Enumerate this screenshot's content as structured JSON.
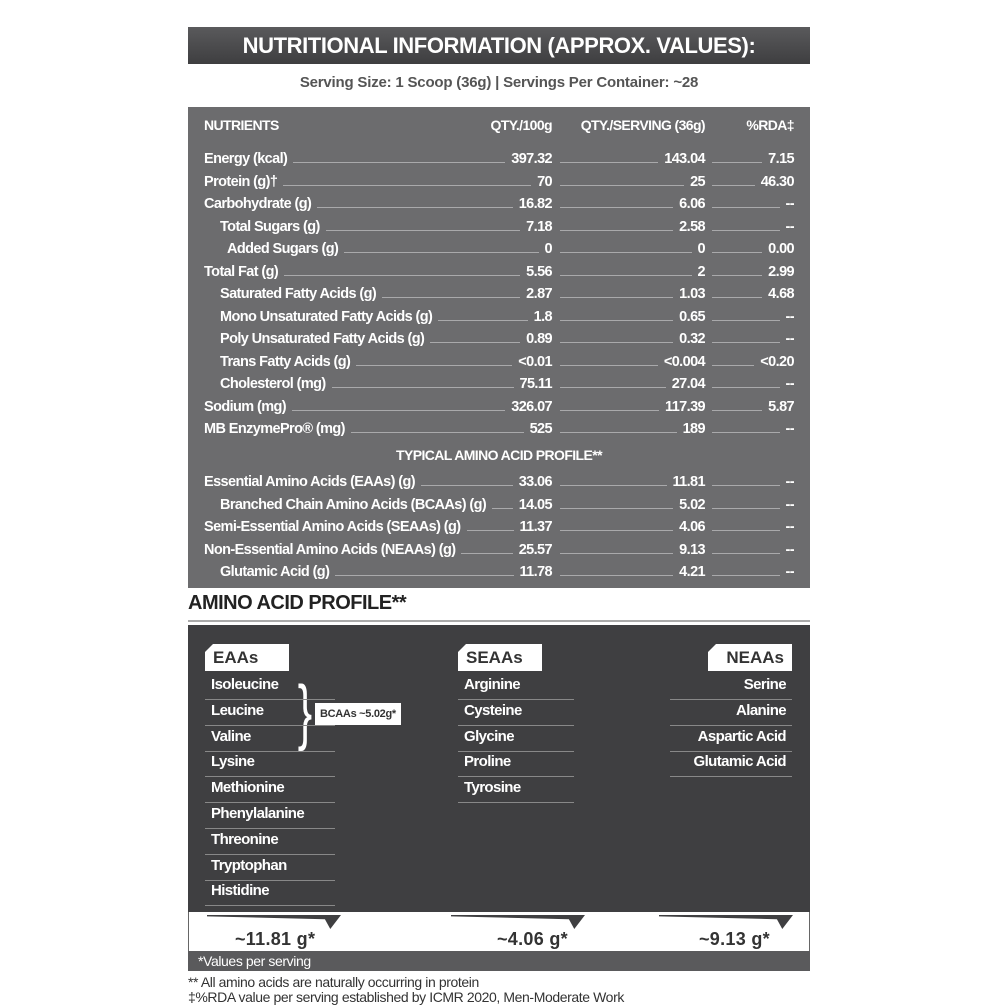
{
  "title": "NUTRITIONAL INFORMATION (APPROX. VALUES):",
  "serving": "Serving Size: 1 Scoop (36g)  |  Servings Per Container: ~28",
  "table": {
    "headers": [
      "NUTRIENTS",
      "QTY./100g",
      "QTY./SERVING (36g)",
      "%RDA‡"
    ],
    "rows": [
      {
        "label": "Energy (kcal)",
        "indent": 0,
        "per100": "397.32",
        "serving": "143.04",
        "rda": "7.15"
      },
      {
        "label": "Protein (g)†",
        "indent": 0,
        "per100": "70",
        "serving": "25",
        "rda": "46.30"
      },
      {
        "label": "Carbohydrate (g)",
        "indent": 0,
        "per100": "16.82",
        "serving": "6.06",
        "rda": "--"
      },
      {
        "label": "Total Sugars (g)",
        "indent": 1,
        "per100": "7.18",
        "serving": "2.58",
        "rda": "--"
      },
      {
        "label": "Added Sugars (g)",
        "indent": 2,
        "per100": "0",
        "serving": "0",
        "rda": "0.00"
      },
      {
        "label": "Total Fat (g)",
        "indent": 0,
        "per100": "5.56",
        "serving": "2",
        "rda": "2.99"
      },
      {
        "label": "Saturated Fatty Acids (g)",
        "indent": 1,
        "per100": "2.87",
        "serving": "1.03",
        "rda": "4.68"
      },
      {
        "label": "Mono Unsaturated Fatty Acids (g)",
        "indent": 1,
        "per100": "1.8",
        "serving": "0.65",
        "rda": "--"
      },
      {
        "label": "Poly Unsaturated Fatty Acids (g)",
        "indent": 1,
        "per100": "0.89",
        "serving": "0.32",
        "rda": "--"
      },
      {
        "label": "Trans Fatty Acids (g)",
        "indent": 1,
        "per100": "<0.01",
        "serving": "<0.004",
        "rda": "<0.20"
      },
      {
        "label": "Cholesterol (mg)",
        "indent": 1,
        "per100": "75.11",
        "serving": "27.04",
        "rda": "--"
      },
      {
        "label": "Sodium (mg)",
        "indent": 0,
        "per100": "326.07",
        "serving": "117.39",
        "rda": "5.87"
      },
      {
        "label": "MB EnzymePro® (mg)",
        "indent": 0,
        "per100": "525",
        "serving": "189",
        "rda": "--"
      }
    ],
    "amino_subheading": "TYPICAL AMINO ACID PROFILE**",
    "amino_rows": [
      {
        "label": "Essential Amino Acids (EAAs) (g)",
        "indent": 0,
        "per100": "33.06",
        "serving": "11.81",
        "rda": "--"
      },
      {
        "label": "Branched Chain Amino Acids (BCAAs) (g)",
        "indent": 1,
        "per100": "14.05",
        "serving": "5.02",
        "rda": "--"
      },
      {
        "label": "Semi-Essential Amino Acids (SEAAs) (g)",
        "indent": 0,
        "per100": "11.37",
        "serving": "4.06",
        "rda": "--"
      },
      {
        "label": "Non-Essential Amino Acids (NEAAs) (g)",
        "indent": 0,
        "per100": "25.57",
        "serving": "9.13",
        "rda": "--"
      },
      {
        "label": "Glutamic Acid (g)",
        "indent": 1,
        "per100": "11.78",
        "serving": "4.21",
        "rda": "--"
      }
    ]
  },
  "amino_profile": {
    "heading": "AMINO ACID PROFILE**",
    "eaas": {
      "title": "EAAs",
      "items": [
        "Isoleucine",
        "Leucine",
        "Valine",
        "Lysine",
        "Methionine",
        "Phenylalanine",
        "Threonine",
        "Tryptophan",
        "Histidine"
      ],
      "total": "~11.81 g*"
    },
    "bcaa_label": "BCAAs ~5.02g*",
    "seaas": {
      "title": "SEAAs",
      "items": [
        "Arginine",
        "Cysteine",
        "Glycine",
        "Proline",
        "Tyrosine"
      ],
      "total": "~4.06 g*"
    },
    "neaas": {
      "title": "NEAAs",
      "items": [
        "Serine",
        "Alanine",
        "Aspartic Acid",
        "Glutamic Acid"
      ],
      "total": "~9.13 g*"
    },
    "values_note": "*Values per serving"
  },
  "footnotes": [
    "** All amino acids are naturally occurring in protein",
    "‡%RDA value per serving established by ICMR 2020, Men-Moderate Work"
  ]
}
